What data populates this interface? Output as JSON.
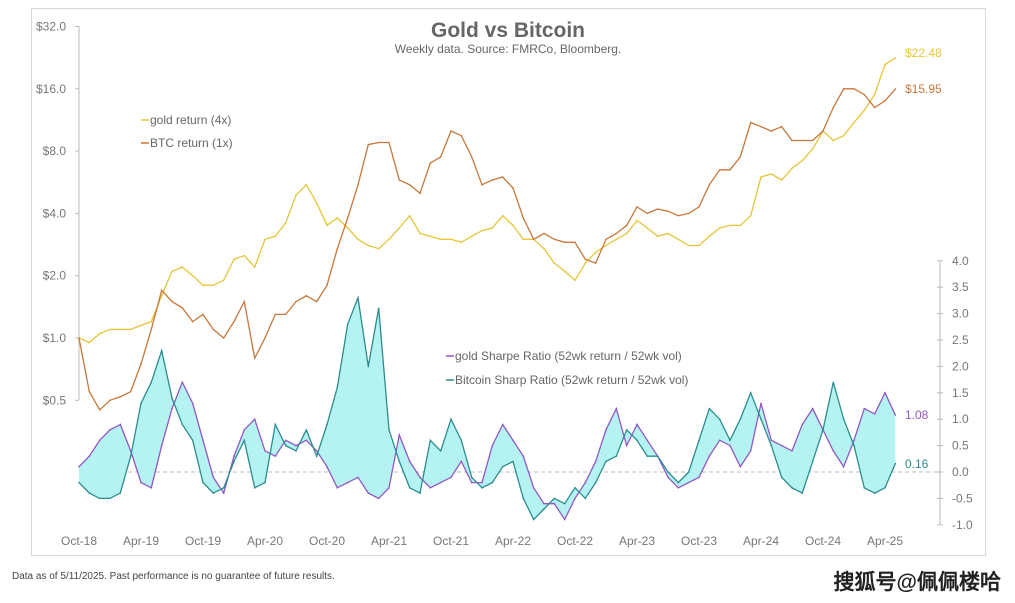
{
  "chart_data": {
    "type": "line",
    "title": "Gold vs Bitcoin",
    "subtitle": "Weekly data.  Source: FMRCo, Bloomberg.",
    "x_tick_labels": [
      "Oct-18",
      "Apr-19",
      "Oct-19",
      "Apr-20",
      "Oct-20",
      "Apr-21",
      "Oct-21",
      "Apr-22",
      "Oct-22",
      "Apr-23",
      "Oct-23",
      "Apr-24",
      "Oct-24",
      "Apr-25"
    ],
    "x": [
      "2018-10",
      "2018-11",
      "2018-12",
      "2019-01",
      "2019-02",
      "2019-03",
      "2019-04",
      "2019-05",
      "2019-06",
      "2019-07",
      "2019-08",
      "2019-09",
      "2019-10",
      "2019-11",
      "2019-12",
      "2020-01",
      "2020-02",
      "2020-03",
      "2020-04",
      "2020-05",
      "2020-06",
      "2020-07",
      "2020-08",
      "2020-09",
      "2020-10",
      "2020-11",
      "2020-12",
      "2021-01",
      "2021-02",
      "2021-03",
      "2021-04",
      "2021-05",
      "2021-06",
      "2021-07",
      "2021-08",
      "2021-09",
      "2021-10",
      "2021-11",
      "2021-12",
      "2022-01",
      "2022-02",
      "2022-03",
      "2022-04",
      "2022-05",
      "2022-06",
      "2022-07",
      "2022-08",
      "2022-09",
      "2022-10",
      "2022-11",
      "2022-12",
      "2023-01",
      "2023-02",
      "2023-03",
      "2023-04",
      "2023-05",
      "2023-06",
      "2023-07",
      "2023-08",
      "2023-09",
      "2023-10",
      "2023-11",
      "2023-12",
      "2024-01",
      "2024-02",
      "2024-03",
      "2024-04",
      "2024-05",
      "2024-06",
      "2024-07",
      "2024-08",
      "2024-09",
      "2024-10",
      "2024-11",
      "2024-12",
      "2025-01",
      "2025-02",
      "2025-03",
      "2025-04",
      "2025-05"
    ],
    "left_axis": {
      "scale": "log2",
      "ylim": [
        0.5,
        32
      ],
      "tick_labels": [
        "$32.0",
        "$16.0",
        "$8.0",
        "$4.0",
        "$2.0",
        "$1.0",
        "$0.5"
      ],
      "ticks": [
        32,
        16,
        8,
        4,
        2,
        1,
        0.5
      ]
    },
    "right_axis": {
      "scale": "linear",
      "ylim": [
        -1,
        4
      ],
      "tick_labels": [
        "4.0",
        "3.5",
        "3.0",
        "2.5",
        "2.0",
        "1.5",
        "1.0",
        "0.5",
        "0.0",
        "-0.5",
        "-1.0"
      ],
      "ticks": [
        4,
        3.5,
        3,
        2.5,
        2,
        1.5,
        1,
        0.5,
        0,
        -0.5,
        -1
      ]
    },
    "grid": false,
    "series": [
      {
        "name": "gold return (4x)",
        "axis": "left",
        "color": "#e6c53a",
        "end_label": "$22.48",
        "values": [
          1.0,
          0.95,
          1.05,
          1.1,
          1.1,
          1.1,
          1.15,
          1.2,
          1.6,
          2.1,
          2.2,
          2.0,
          1.8,
          1.8,
          1.9,
          2.4,
          2.5,
          2.2,
          3.0,
          3.1,
          3.6,
          4.9,
          5.5,
          4.5,
          3.5,
          3.8,
          3.4,
          3.0,
          2.8,
          2.7,
          3.0,
          3.4,
          3.9,
          3.2,
          3.1,
          3.0,
          3.0,
          2.9,
          3.1,
          3.3,
          3.4,
          3.9,
          3.5,
          3.0,
          3.0,
          2.7,
          2.3,
          2.1,
          1.9,
          2.3,
          2.6,
          2.8,
          3.0,
          3.2,
          3.7,
          3.4,
          3.1,
          3.2,
          3.0,
          2.8,
          2.8,
          3.1,
          3.4,
          3.5,
          3.5,
          3.9,
          6.0,
          6.2,
          5.8,
          6.6,
          7.2,
          8.2,
          10.0,
          9.0,
          9.5,
          11,
          12.6,
          15,
          21,
          22.48
        ]
      },
      {
        "name": "BTC return (1x)",
        "axis": "left",
        "color": "#c7783c",
        "end_label": "$15.95",
        "values": [
          1.0,
          0.55,
          0.45,
          0.5,
          0.52,
          0.55,
          0.75,
          1.1,
          1.7,
          1.5,
          1.4,
          1.2,
          1.3,
          1.1,
          1.0,
          1.2,
          1.5,
          0.8,
          1.0,
          1.3,
          1.3,
          1.5,
          1.6,
          1.5,
          1.8,
          2.7,
          3.8,
          5.5,
          8.6,
          8.8,
          8.8,
          5.8,
          5.5,
          5.0,
          7.0,
          7.5,
          10.0,
          9.5,
          7.5,
          5.5,
          5.8,
          6.0,
          5.3,
          3.8,
          3.0,
          3.2,
          3.0,
          2.9,
          2.9,
          2.4,
          2.3,
          3.0,
          3.2,
          3.5,
          4.3,
          4.0,
          4.2,
          4.1,
          3.9,
          4.0,
          4.3,
          5.5,
          6.5,
          6.5,
          7.5,
          11.0,
          10.5,
          10.0,
          10.5,
          9.0,
          9.0,
          9.0,
          10.0,
          13.0,
          16.0,
          16.0,
          15.0,
          13.0,
          14.0,
          15.95
        ]
      },
      {
        "name": "gold Sharpe Ratio (52wk return / 52wk vol)",
        "axis": "right",
        "color": "#9257c2",
        "end_label": "1.08",
        "values": [
          0.1,
          0.3,
          0.6,
          0.8,
          0.9,
          0.4,
          -0.2,
          -0.3,
          0.5,
          1.2,
          1.7,
          1.3,
          0.6,
          -0.1,
          -0.4,
          0.3,
          0.8,
          1.0,
          0.4,
          0.3,
          0.6,
          0.5,
          0.6,
          0.4,
          0.1,
          -0.3,
          -0.2,
          -0.1,
          -0.4,
          -0.5,
          -0.3,
          0.7,
          0.2,
          -0.1,
          -0.3,
          -0.2,
          -0.1,
          0.2,
          -0.2,
          -0.2,
          0.5,
          0.9,
          0.6,
          0.3,
          -0.3,
          -0.6,
          -0.6,
          -0.9,
          -0.5,
          -0.2,
          0.2,
          0.8,
          1.2,
          0.5,
          0.9,
          0.6,
          0.3,
          -0.1,
          -0.3,
          -0.2,
          -0.1,
          0.3,
          0.6,
          0.5,
          0.1,
          0.4,
          1.3,
          0.6,
          0.5,
          0.4,
          0.9,
          1.2,
          0.8,
          0.4,
          0.1,
          0.6,
          1.2,
          1.1,
          1.5,
          1.08
        ]
      },
      {
        "name": "Bitcoin Sharp Ratio (52wk return / 52wk vol)",
        "axis": "right",
        "color": "#2b8c8f",
        "end_label": "0.16",
        "values": [
          -0.2,
          -0.4,
          -0.5,
          -0.5,
          -0.4,
          0.3,
          1.3,
          1.7,
          2.3,
          1.4,
          0.9,
          0.6,
          -0.2,
          -0.4,
          -0.3,
          0.2,
          0.6,
          -0.3,
          -0.2,
          0.9,
          0.5,
          0.4,
          0.8,
          0.3,
          0.9,
          1.6,
          2.8,
          3.3,
          2.0,
          3.1,
          0.8,
          0.2,
          -0.3,
          -0.4,
          0.6,
          0.4,
          1.0,
          0.6,
          -0.1,
          -0.3,
          -0.2,
          0.1,
          0.2,
          -0.5,
          -0.9,
          -0.7,
          -0.5,
          -0.6,
          -0.3,
          -0.5,
          -0.2,
          0.2,
          0.3,
          0.8,
          0.6,
          0.3,
          0.3,
          0.0,
          -0.2,
          0.0,
          0.6,
          1.2,
          1.0,
          0.6,
          1.0,
          1.5,
          1.0,
          0.5,
          -0.1,
          -0.3,
          -0.4,
          0.2,
          0.8,
          1.7,
          1.0,
          0.5,
          -0.3,
          -0.4,
          -0.3,
          0.16
        ]
      }
    ],
    "fill_between_sharpe_color": "#b5f3f3",
    "legend_placement": "upper-left (returns), center (Sharpe ratios)"
  },
  "footnote": "Data as of 5/11/2025. Past performance is no guarantee of future results.",
  "watermark": "搜狐号@佩佩楼哈"
}
